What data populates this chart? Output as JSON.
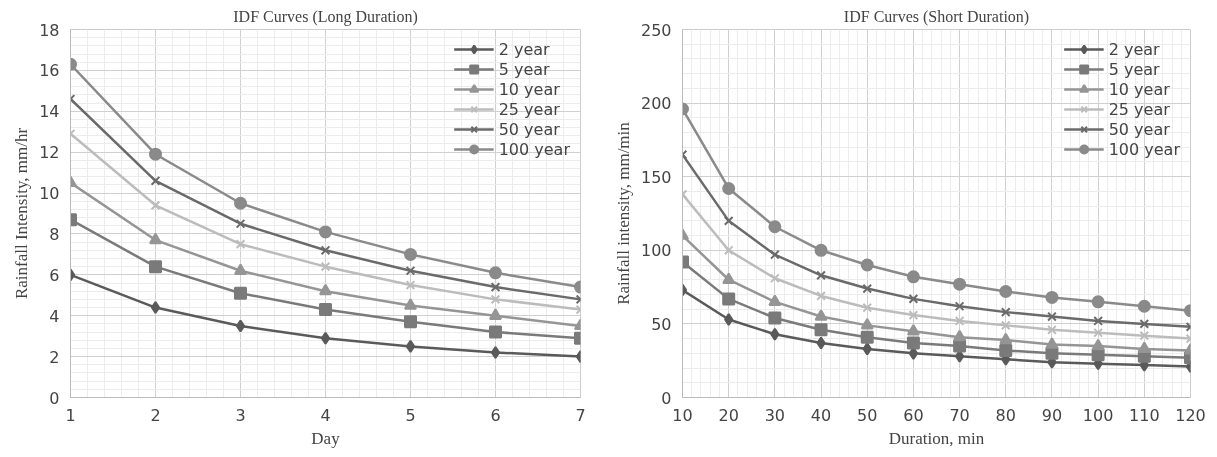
{
  "chart_data": [
    {
      "type": "line",
      "title": "IDF Curves (Long Duration)",
      "xlabel": "Day",
      "ylabel": "Rainfall Intensity, mm/hr",
      "x": [
        1,
        2,
        3,
        4,
        5,
        6,
        7
      ],
      "xlim": [
        1,
        7
      ],
      "xticks": [
        1,
        2,
        3,
        4,
        5,
        6,
        7
      ],
      "ylim": [
        0,
        18
      ],
      "yticks": [
        0,
        2,
        4,
        6,
        8,
        10,
        12,
        14,
        16,
        18
      ],
      "grid": true,
      "legend": "top right",
      "series": [
        {
          "name": "2 year",
          "color": "#5a5a5a",
          "marker": "diamond",
          "values": [
            6.0,
            4.4,
            3.5,
            2.9,
            2.5,
            2.2,
            2.0
          ]
        },
        {
          "name": "5 year",
          "color": "#7a7a7a",
          "marker": "square",
          "values": [
            8.7,
            6.4,
            5.1,
            4.3,
            3.7,
            3.2,
            2.9
          ]
        },
        {
          "name": "10 year",
          "color": "#959595",
          "marker": "triangle",
          "values": [
            10.5,
            7.7,
            6.2,
            5.2,
            4.5,
            4.0,
            3.5
          ]
        },
        {
          "name": "25 year",
          "color": "#bcbcbc",
          "marker": "cross",
          "values": [
            12.9,
            9.4,
            7.5,
            6.4,
            5.5,
            4.8,
            4.3
          ]
        },
        {
          "name": "50 year",
          "color": "#6a6a6a",
          "marker": "cross",
          "values": [
            14.6,
            10.6,
            8.5,
            7.2,
            6.2,
            5.4,
            4.8
          ]
        },
        {
          "name": "100 year",
          "color": "#8a8a8a",
          "marker": "circle",
          "values": [
            16.3,
            11.9,
            9.5,
            8.1,
            7.0,
            6.1,
            5.4
          ]
        }
      ]
    },
    {
      "type": "line",
      "title": "IDF Curves (Short Duration)",
      "xlabel": "Duration, min",
      "ylabel": "Rainfall intensity, mm/min",
      "x": [
        10,
        20,
        30,
        40,
        50,
        60,
        70,
        80,
        90,
        100,
        110,
        120
      ],
      "xlim": [
        10,
        120
      ],
      "xticks": [
        10,
        20,
        30,
        40,
        50,
        60,
        70,
        80,
        90,
        100,
        110,
        120
      ],
      "ylim": [
        0,
        250
      ],
      "yticks": [
        0,
        50,
        100,
        150,
        200,
        250
      ],
      "grid": true,
      "legend": "top right",
      "series": [
        {
          "name": "2 year",
          "color": "#5a5a5a",
          "marker": "diamond",
          "values": [
            73,
            53,
            43,
            37,
            33,
            30,
            28,
            26,
            24,
            23,
            22,
            21
          ]
        },
        {
          "name": "5 year",
          "color": "#7a7a7a",
          "marker": "square",
          "values": [
            92,
            67,
            54,
            46,
            41,
            37,
            35,
            32,
            30,
            29,
            28,
            27
          ]
        },
        {
          "name": "10 year",
          "color": "#959595",
          "marker": "triangle",
          "values": [
            110,
            80,
            65,
            55,
            49,
            45,
            41,
            39,
            36,
            35,
            33,
            32
          ]
        },
        {
          "name": "25 year",
          "color": "#bcbcbc",
          "marker": "cross",
          "values": [
            138,
            100,
            81,
            69,
            61,
            56,
            52,
            49,
            46,
            44,
            42,
            40
          ]
        },
        {
          "name": "50 year",
          "color": "#6a6a6a",
          "marker": "cross",
          "values": [
            165,
            120,
            97,
            83,
            74,
            67,
            62,
            58,
            55,
            52,
            50,
            48
          ]
        },
        {
          "name": "100 year",
          "color": "#8a8a8a",
          "marker": "circle",
          "values": [
            196,
            142,
            116,
            100,
            90,
            82,
            77,
            72,
            68,
            65,
            62,
            59
          ]
        }
      ]
    }
  ]
}
